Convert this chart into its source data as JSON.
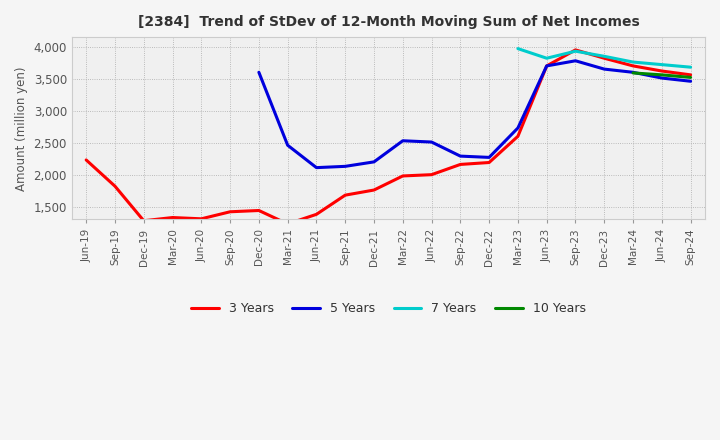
{
  "title": "[2384]  Trend of StDev of 12-Month Moving Sum of Net Incomes",
  "ylabel": "Amount (million yen)",
  "ylim": [
    1300,
    4150
  ],
  "yticks": [
    1500,
    2000,
    2500,
    3000,
    3500,
    4000
  ],
  "x_labels": [
    "Jun-19",
    "Sep-19",
    "Dec-19",
    "Mar-20",
    "Jun-20",
    "Sep-20",
    "Dec-20",
    "Mar-21",
    "Jun-21",
    "Sep-21",
    "Dec-21",
    "Mar-22",
    "Jun-22",
    "Sep-22",
    "Dec-22",
    "Mar-23",
    "Jun-23",
    "Sep-23",
    "Dec-23",
    "Mar-24",
    "Jun-24",
    "Sep-24"
  ],
  "series": {
    "3 Years": {
      "color": "#ff0000",
      "values": [
        2230,
        1820,
        1280,
        1330,
        1310,
        1420,
        1440,
        1230,
        1380,
        1680,
        1760,
        1980,
        2000,
        2160,
        2190,
        2600,
        3700,
        3950,
        3820,
        3700,
        3620,
        3560
      ]
    },
    "5 Years": {
      "color": "#0000dd",
      "values": [
        null,
        null,
        null,
        null,
        null,
        null,
        3600,
        2460,
        2110,
        2130,
        2200,
        2530,
        2510,
        2290,
        2270,
        2730,
        3700,
        3780,
        3650,
        3600,
        3510,
        3460
      ]
    },
    "7 Years": {
      "color": "#00cccc",
      "values": [
        null,
        null,
        null,
        null,
        null,
        null,
        null,
        null,
        null,
        null,
        null,
        null,
        null,
        null,
        null,
        3970,
        3820,
        3930,
        3850,
        3760,
        3720,
        3680
      ]
    },
    "10 Years": {
      "color": "#008800",
      "values": [
        null,
        null,
        null,
        null,
        null,
        null,
        null,
        null,
        null,
        null,
        null,
        null,
        null,
        null,
        null,
        null,
        null,
        null,
        null,
        3590,
        3560,
        3520
      ]
    }
  },
  "legend_order": [
    "3 Years",
    "5 Years",
    "7 Years",
    "10 Years"
  ],
  "background_color": "#f5f5f5",
  "plot_bg_color": "#f0f0f0",
  "grid_color": "#aaaaaa",
  "title_color": "#333333",
  "linewidth": 2.2
}
